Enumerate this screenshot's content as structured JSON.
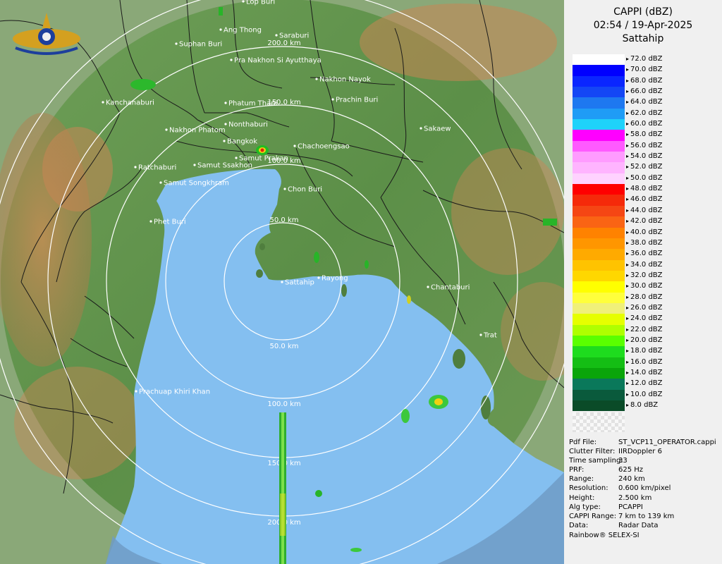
{
  "header": {
    "title": "CAPPI (dBZ)",
    "time": "02:54 / 19-Apr-2025",
    "station": "Sattahip"
  },
  "colors": {
    "sea": "#84bff0",
    "sea_outer": "#6e9bc5",
    "land_green": "#5f9a4e",
    "land_red": "#c47a4a",
    "rings": "#ffffff",
    "borders": "#1a1a1a"
  },
  "map": {
    "range_rings": [
      "50.0 km",
      "100.0 km",
      "150.0 km",
      "200.0 km",
      "50.0 km",
      "100.0 km",
      "150.0 km",
      "200.0 km"
    ],
    "cities": [
      "Suphan Buri",
      "Ang Thong",
      "Saraburi",
      "Pra Nakhon Si Ayutthaya",
      "Nakhon Nayok",
      "Kanchanaburi",
      "Phatum Thani",
      "Prachin Buri",
      "Nonthaburi",
      "Nakhon Phatom",
      "Sakaew",
      "Bangkok",
      "Chachoengsao",
      "Samut Prakan",
      "Ratchaburi",
      "Samut Ssakhon",
      "Samut Songkhram",
      "Chon Buri",
      "Phet Buri",
      "Sattahip",
      "Rayong",
      "Chantaburi",
      "Trat",
      "Prachuap Khiri Khan",
      "Lop Buri"
    ]
  },
  "legend": [
    {
      "label": "72.0 dBZ",
      "color": "#ffffff"
    },
    {
      "label": "70.0 dBZ",
      "color": "#0000ff"
    },
    {
      "label": "68.0 dBZ",
      "color": "#0a26ff"
    },
    {
      "label": "66.0 dBZ",
      "color": "#1446f5"
    },
    {
      "label": "64.0 dBZ",
      "color": "#1e78f0"
    },
    {
      "label": "62.0 dBZ",
      "color": "#1f9cf6"
    },
    {
      "label": "60.0 dBZ",
      "color": "#1ed2fa"
    },
    {
      "label": "58.0 dBZ",
      "color": "#ff00ff"
    },
    {
      "label": "56.0 dBZ",
      "color": "#ff5aff"
    },
    {
      "label": "54.0 dBZ",
      "color": "#ff9bff"
    },
    {
      "label": "52.0 dBZ",
      "color": "#ffb4ff"
    },
    {
      "label": "50.0 dBZ",
      "color": "#ffd2ff"
    },
    {
      "label": "48.0 dBZ",
      "color": "#ff0000"
    },
    {
      "label": "46.0 dBZ",
      "color": "#f52a0a"
    },
    {
      "label": "44.0 dBZ",
      "color": "#f54614"
    },
    {
      "label": "42.0 dBZ",
      "color": "#fa6414"
    },
    {
      "label": "40.0 dBZ",
      "color": "#ff8200"
    },
    {
      "label": "38.0 dBZ",
      "color": "#ff9600"
    },
    {
      "label": "36.0 dBZ",
      "color": "#ffaa00"
    },
    {
      "label": "34.0 dBZ",
      "color": "#ffc300"
    },
    {
      "label": "32.0 dBZ",
      "color": "#ffd700"
    },
    {
      "label": "30.0 dBZ",
      "color": "#ffff00"
    },
    {
      "label": "28.0 dBZ",
      "color": "#ffff3c"
    },
    {
      "label": "26.0 dBZ",
      "color": "#f0f07a"
    },
    {
      "label": "24.0 dBZ",
      "color": "#e6ff00"
    },
    {
      "label": "22.0 dBZ",
      "color": "#afff00"
    },
    {
      "label": "20.0 dBZ",
      "color": "#5aff00"
    },
    {
      "label": "18.0 dBZ",
      "color": "#1edc1e"
    },
    {
      "label": "16.0 dBZ",
      "color": "#14be14"
    },
    {
      "label": "14.0 dBZ",
      "color": "#0aa50a"
    },
    {
      "label": "12.0 dBZ",
      "color": "#0a785a"
    },
    {
      "label": "10.0 dBZ",
      "color": "#0a5a3c"
    },
    {
      "label": "8.0 dBZ",
      "color": "#0a4b28"
    }
  ],
  "info": {
    "rows": [
      {
        "k": "Pdf File:",
        "v": "ST_VCP11_OPERATOR.cappi"
      },
      {
        "k": "Clutter Filter:",
        "v": "IIRDoppler 6"
      },
      {
        "k": "Time sampling:",
        "v": "33"
      },
      {
        "k": "PRF:",
        "v": "625 Hz"
      },
      {
        "k": "Range:",
        "v": "240 km"
      },
      {
        "k": "Resolution:",
        "v": "0.600 km/pixel"
      },
      {
        "k": "Height:",
        "v": "2.500 km"
      },
      {
        "k": "Alg type:",
        "v": "PCAPPI"
      },
      {
        "k": "CAPPI Range:",
        "v": "7 km to 139 km"
      },
      {
        "k": "Data:",
        "v": "Radar Data"
      }
    ],
    "footer": "Rainbow® SELEX-SI"
  }
}
